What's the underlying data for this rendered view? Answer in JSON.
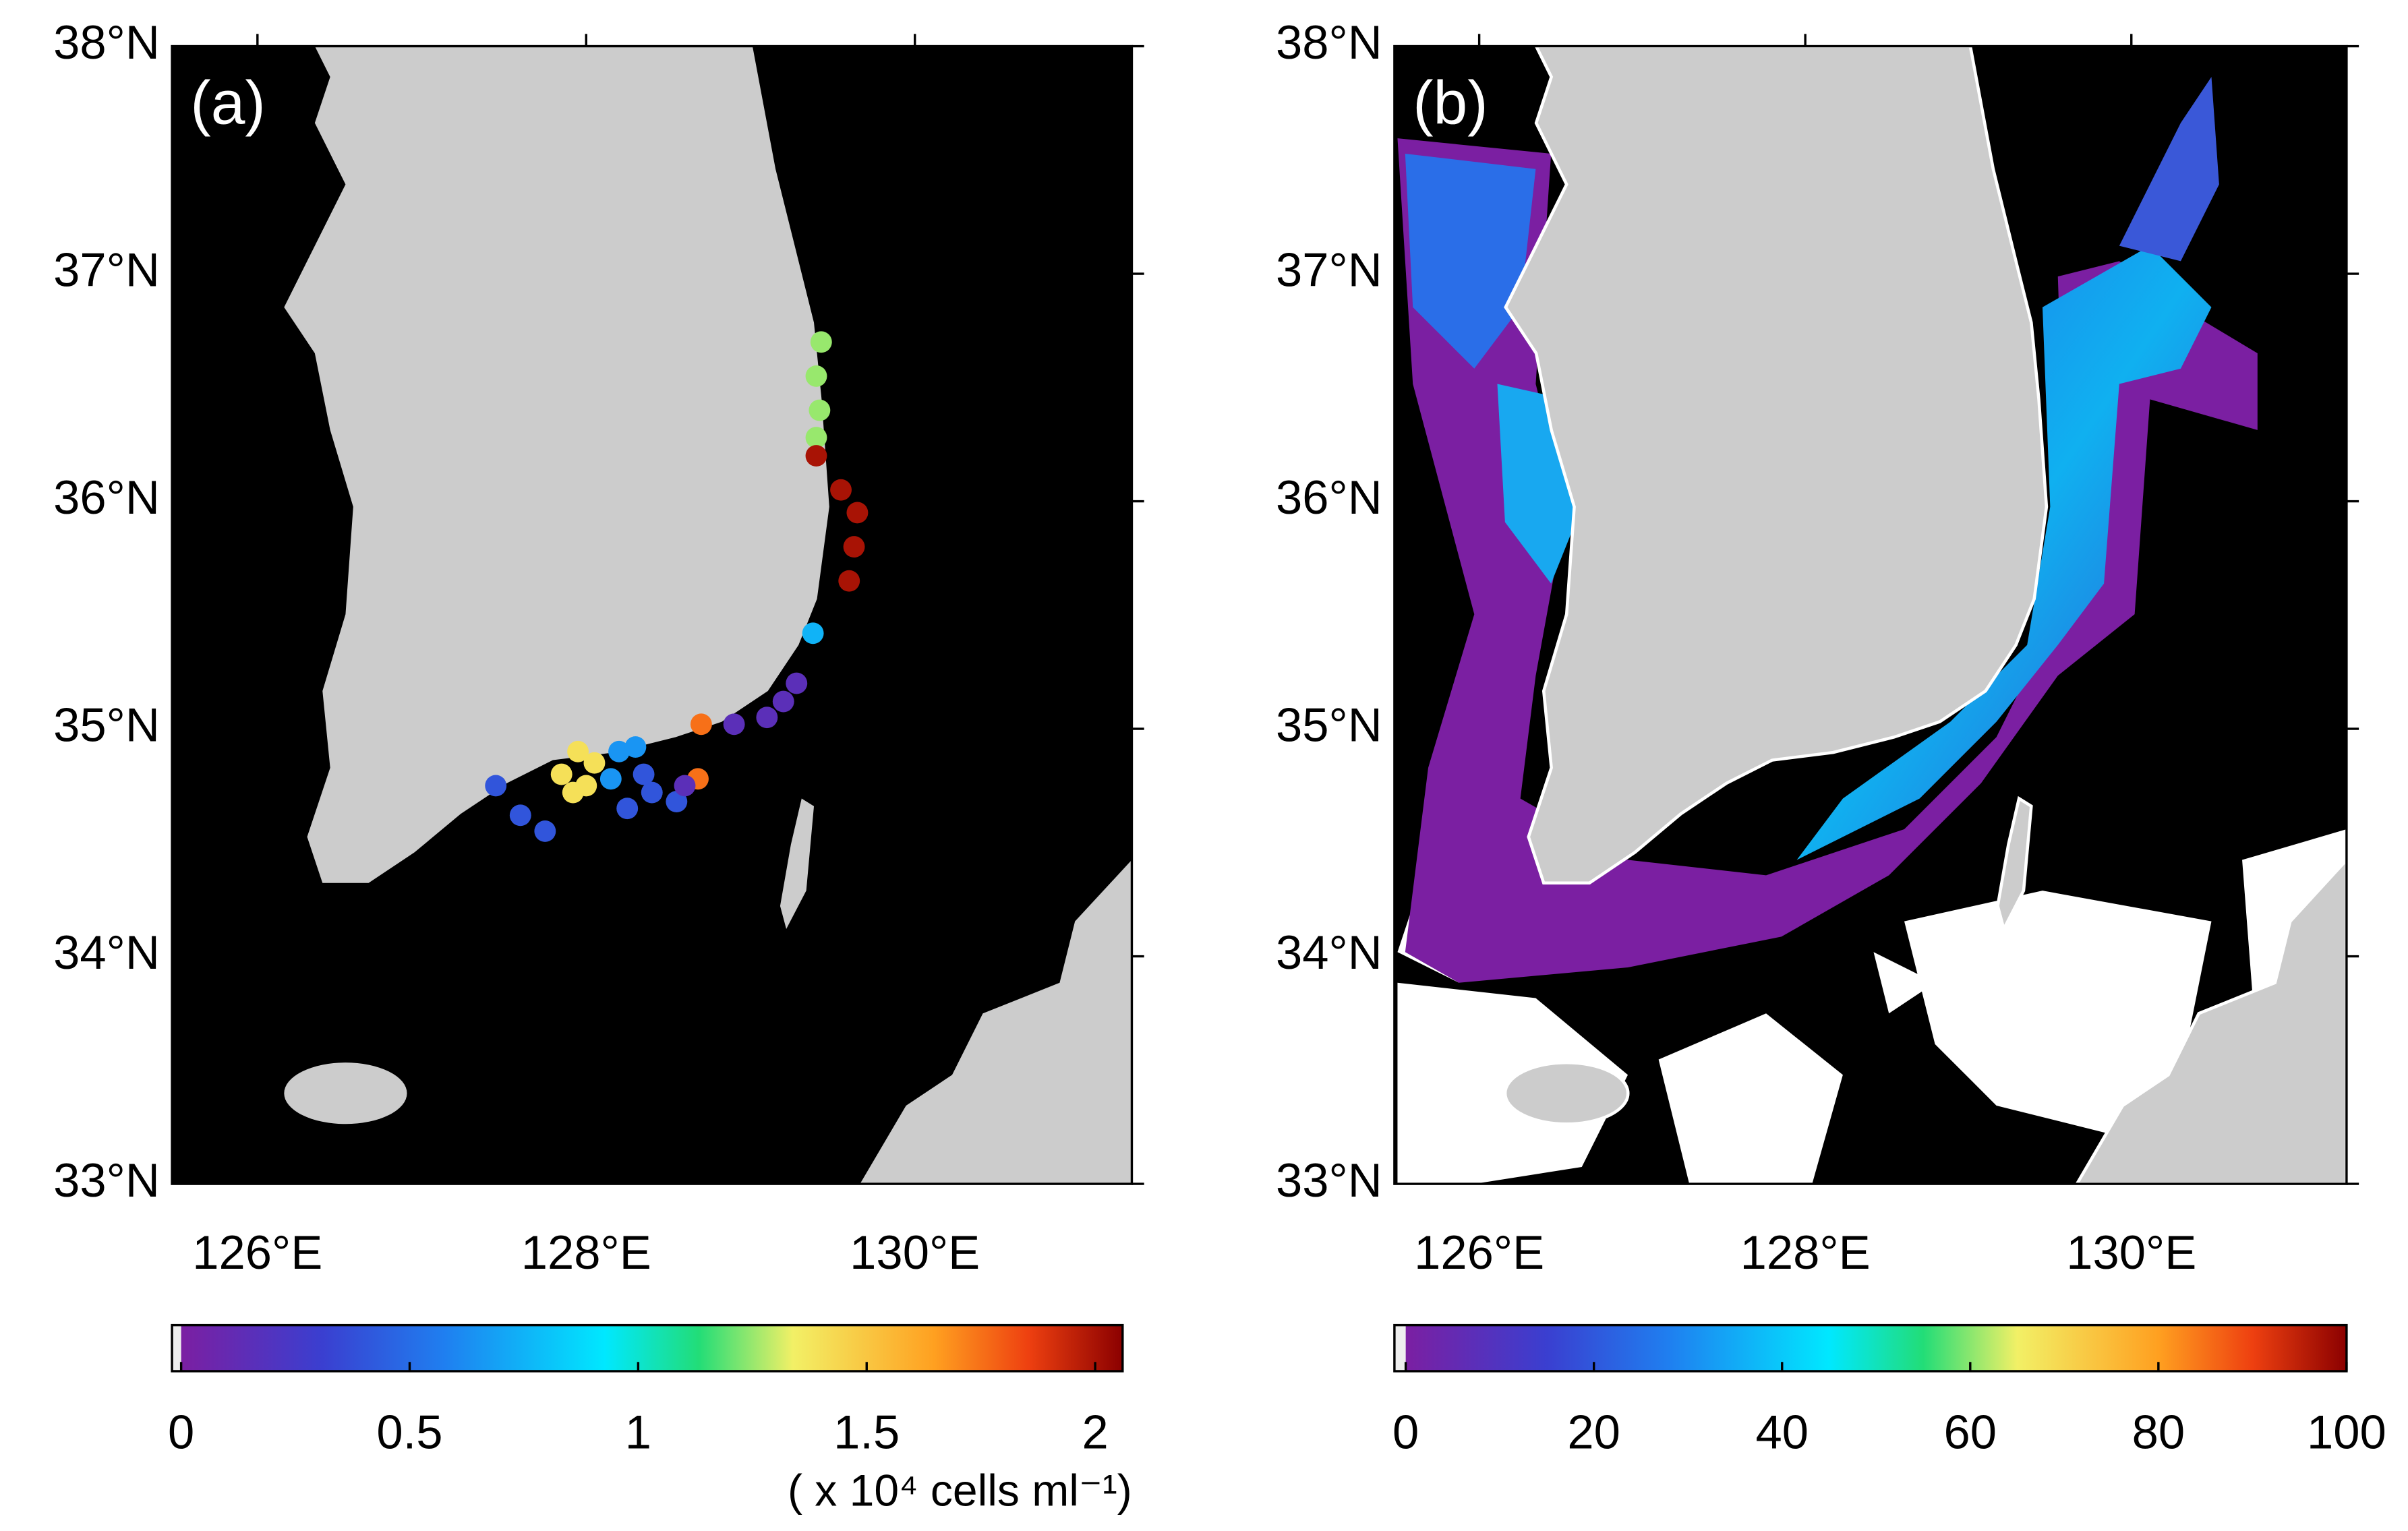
{
  "panels": [
    {
      "label": "(a)",
      "map": {
        "lonlim": [
          125.48,
          131.32
        ],
        "latlim": [
          33,
          38
        ],
        "lonticks": [
          {
            "value": 126,
            "label": "126°E"
          },
          {
            "value": 128,
            "label": "128°E"
          },
          {
            "value": 130,
            "label": "130°E"
          }
        ],
        "latticks": [
          {
            "value": 33,
            "label": "33°N"
          },
          {
            "value": 34,
            "label": "34°N"
          },
          {
            "value": 35,
            "label": "35°N"
          },
          {
            "value": 36,
            "label": "36°N"
          },
          {
            "value": 37,
            "label": "37°N"
          },
          {
            "value": 38,
            "label": "38°N"
          }
        ]
      },
      "colorbar": {
        "lim": [
          -0.02,
          2.06
        ],
        "ticks": [
          0,
          0.5,
          1,
          1.5,
          2
        ],
        "unit": "( x 10⁴ cells ml⁻¹)"
      },
      "observations": [
        {
          "lon": 129.43,
          "lat": 36.7,
          "value": 1.25
        },
        {
          "lon": 129.4,
          "lat": 36.55,
          "value": 1.25
        },
        {
          "lon": 129.42,
          "lat": 36.4,
          "value": 1.25
        },
        {
          "lon": 129.4,
          "lat": 36.28,
          "value": 1.25
        },
        {
          "lon": 129.4,
          "lat": 36.2,
          "value": 2
        },
        {
          "lon": 129.55,
          "lat": 36.05,
          "value": 2
        },
        {
          "lon": 129.65,
          "lat": 35.95,
          "value": 2
        },
        {
          "lon": 129.63,
          "lat": 35.8,
          "value": 2
        },
        {
          "lon": 129.6,
          "lat": 35.65,
          "value": 2
        },
        {
          "lon": 129.38,
          "lat": 35.42,
          "value": 0.75
        },
        {
          "lon": 129.28,
          "lat": 35.2,
          "value": 0.15
        },
        {
          "lon": 129.2,
          "lat": 35.12,
          "value": 0.15
        },
        {
          "lon": 129.1,
          "lat": 35.05,
          "value": 0.15
        },
        {
          "lon": 128.9,
          "lat": 35.02,
          "value": 0.15
        },
        {
          "lon": 128.7,
          "lat": 35.02,
          "value": 1.75
        },
        {
          "lon": 128.68,
          "lat": 34.78,
          "value": 1.75
        },
        {
          "lon": 127.85,
          "lat": 34.8,
          "value": 1.4
        },
        {
          "lon": 127.95,
          "lat": 34.9,
          "value": 1.4
        },
        {
          "lon": 128.0,
          "lat": 34.75,
          "value": 1.4
        },
        {
          "lon": 127.92,
          "lat": 34.72,
          "value": 1.4
        },
        {
          "lon": 128.05,
          "lat": 34.85,
          "value": 1.4
        },
        {
          "lon": 127.45,
          "lat": 34.75,
          "value": 0.4
        },
        {
          "lon": 127.6,
          "lat": 34.62,
          "value": 0.4
        },
        {
          "lon": 127.75,
          "lat": 34.55,
          "value": 0.4
        },
        {
          "lon": 128.25,
          "lat": 34.65,
          "value": 0.4
        },
        {
          "lon": 128.4,
          "lat": 34.72,
          "value": 0.4
        },
        {
          "lon": 128.55,
          "lat": 34.68,
          "value": 0.4
        },
        {
          "lon": 128.35,
          "lat": 34.8,
          "value": 0.4
        },
        {
          "lon": 128.2,
          "lat": 34.9,
          "value": 0.65
        },
        {
          "lon": 128.3,
          "lat": 34.92,
          "value": 0.65
        },
        {
          "lon": 128.15,
          "lat": 34.78,
          "value": 0.65
        },
        {
          "lon": 128.6,
          "lat": 34.75,
          "value": 0.15
        }
      ]
    },
    {
      "label": "(b)",
      "map": {
        "lonlim": [
          125.48,
          131.32
        ],
        "latlim": [
          33,
          38
        ],
        "lonticks": [
          {
            "value": 126,
            "label": "126°E"
          },
          {
            "value": 128,
            "label": "128°E"
          },
          {
            "value": 130,
            "label": "130°E"
          }
        ],
        "latticks": [
          {
            "value": 33,
            "label": "33°N"
          },
          {
            "value": 34,
            "label": "34°N"
          },
          {
            "value": 35,
            "label": "35°N"
          },
          {
            "value": 36,
            "label": "36°N"
          },
          {
            "value": 37,
            "label": "37°N"
          },
          {
            "value": 38,
            "label": "38°N"
          }
        ]
      },
      "colorbar": {
        "lim": [
          -1.2,
          100
        ],
        "ticks": [
          0,
          20,
          40,
          60,
          80,
          100
        ]
      }
    }
  ]
}
